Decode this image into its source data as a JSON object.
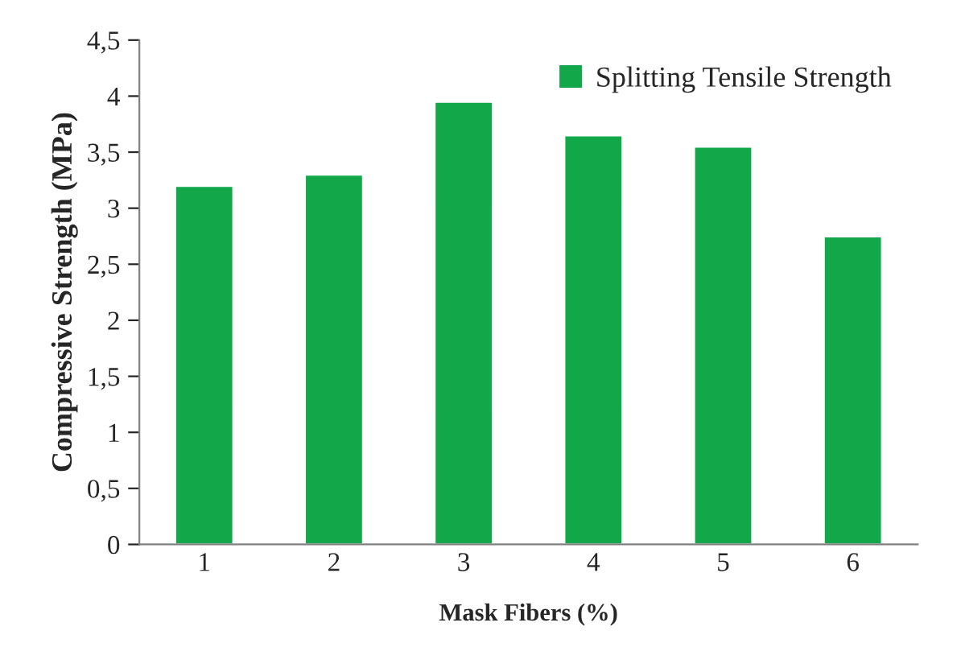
{
  "chart_data": {
    "type": "bar",
    "xlabel": "Mask Fibers (%)",
    "ylabel": "Compressive Strength (MPa)",
    "categories": [
      "1",
      "2",
      "3",
      "4",
      "5",
      "6"
    ],
    "series": [
      {
        "name": "Splitting Tensile Strength",
        "color": "#12a84a",
        "values": [
          3.2,
          3.3,
          3.95,
          3.65,
          3.55,
          2.75
        ]
      }
    ],
    "ylim": [
      0,
      4.5
    ],
    "yticks": [
      0,
      {
        "value": 0.5,
        "label": "0,5"
      },
      1,
      {
        "value": 1.5,
        "label": "1,5"
      },
      2,
      {
        "value": 2.5,
        "label": "2,5"
      },
      3,
      {
        "value": 3.5,
        "label": "3,5"
      },
      4,
      {
        "value": 4.5,
        "label": "4,5"
      }
    ],
    "legend": "top right",
    "grid": false
  }
}
